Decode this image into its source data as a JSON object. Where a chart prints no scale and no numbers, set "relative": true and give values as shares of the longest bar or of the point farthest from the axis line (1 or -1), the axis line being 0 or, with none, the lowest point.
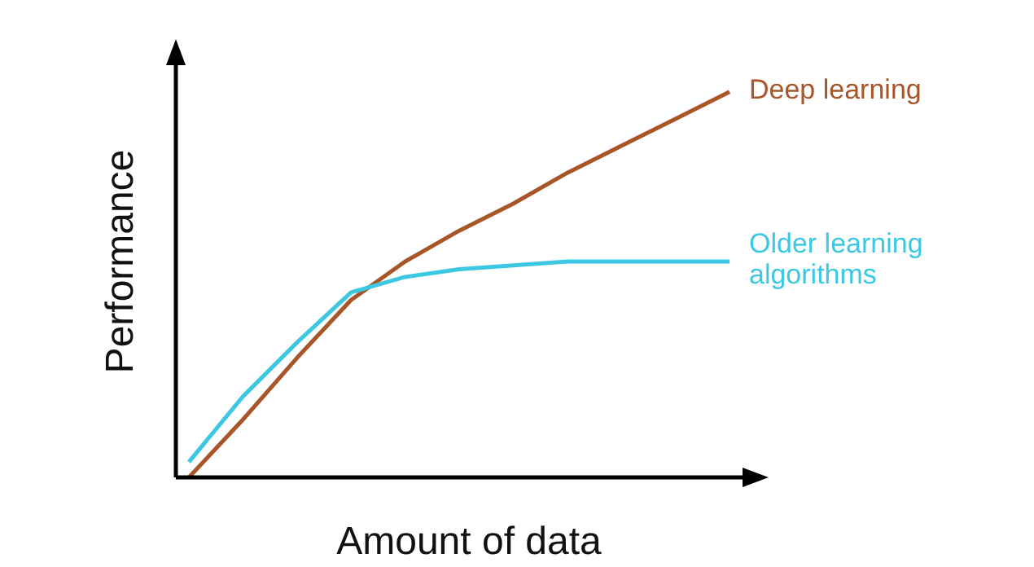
{
  "chart_data": {
    "type": "line",
    "relative": true,
    "xlabel": "Amount of data",
    "ylabel": "Performance",
    "categories": [
      null,
      null,
      null,
      null,
      null,
      null,
      null,
      null,
      null,
      null,
      null
    ],
    "series": [
      {
        "name": "Deep learning",
        "color": "#a8552a",
        "values": [
          0,
          0.15,
          0.31,
          0.46,
          0.56,
          0.64,
          0.71,
          0.79,
          0.86,
          0.93,
          1
        ]
      },
      {
        "name": "Older learning algorithms",
        "color": "#3cc8e2",
        "values": [
          0.04,
          0.21,
          0.35,
          0.48,
          0.52,
          0.54,
          0.55,
          0.56,
          0.56,
          0.56,
          0.56
        ]
      }
    ],
    "marker": "none",
    "line_style": "solid"
  }
}
